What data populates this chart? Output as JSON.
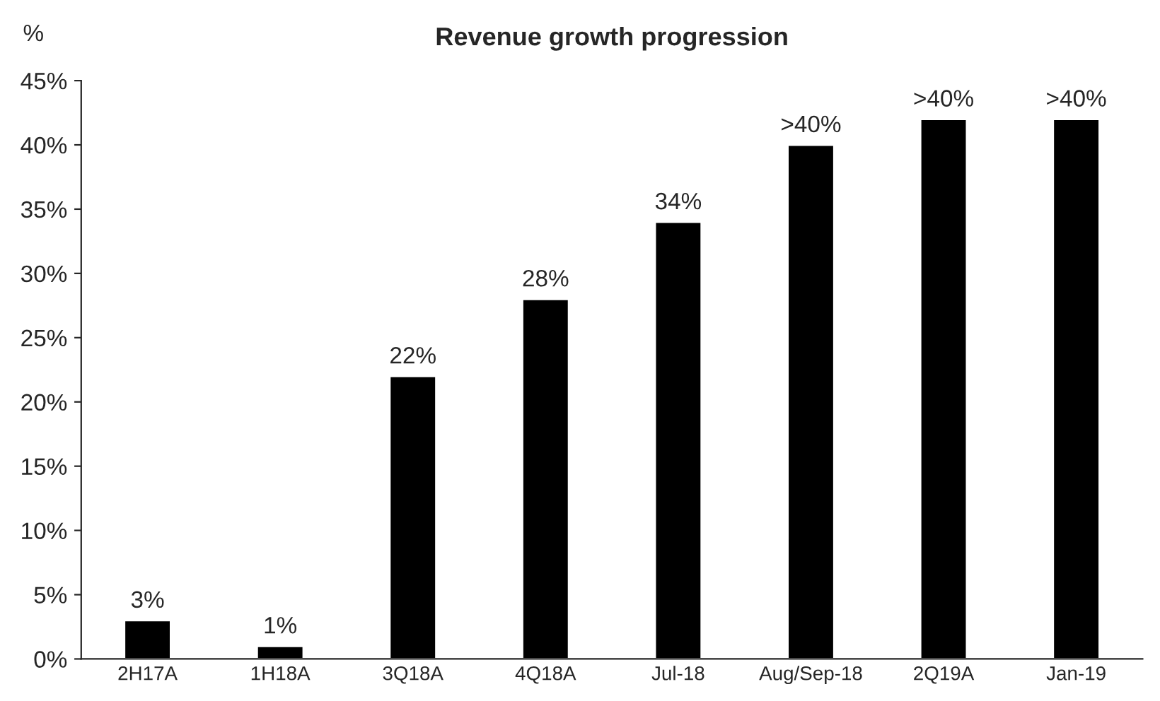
{
  "chart_data": {
    "type": "bar",
    "title": "Revenue growth progression",
    "ylabel": "%",
    "categories": [
      "2H17A",
      "1H18A",
      "3Q18A",
      "4Q18A",
      "Jul-18",
      "Aug/Sep-18",
      "2Q19A",
      "Jan-19"
    ],
    "values": [
      3,
      1,
      22,
      28,
      34,
      40,
      42,
      42
    ],
    "value_labels": [
      "3%",
      "1%",
      "22%",
      "28%",
      "34%",
      ">40%",
      ">40%",
      ">40%"
    ],
    "color": "#000000",
    "ylim": [
      0,
      45
    ],
    "yticks": [
      {
        "value": 0,
        "label": "0%"
      },
      {
        "value": 5,
        "label": "5%"
      },
      {
        "value": 10,
        "label": "10%"
      },
      {
        "value": 15,
        "label": "15%"
      },
      {
        "value": 20,
        "label": "20%"
      },
      {
        "value": 25,
        "label": "25%"
      },
      {
        "value": 30,
        "label": "30%"
      },
      {
        "value": 35,
        "label": "35%"
      },
      {
        "value": 40,
        "label": "40%"
      },
      {
        "value": 45,
        "label": "45%"
      }
    ],
    "grid": false,
    "legend": false
  }
}
